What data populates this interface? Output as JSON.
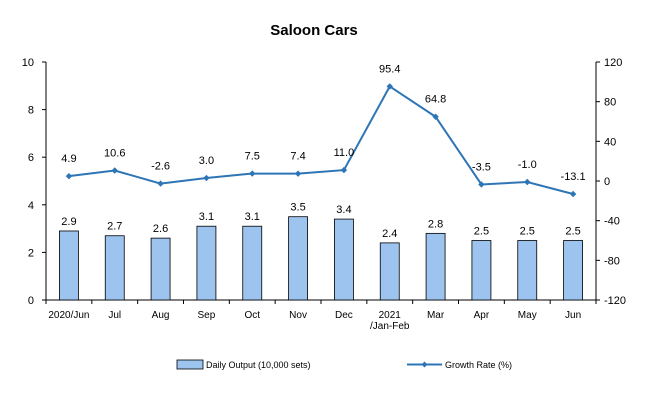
{
  "chart_data": {
    "type": "bar+line",
    "title": "Saloon Cars",
    "categories": [
      "2020/Jun",
      "Jul",
      "Aug",
      "Sep",
      "Oct",
      "Nov",
      "Dec",
      "2021\n/Jan-Feb",
      "Mar",
      "Apr",
      "May",
      "Jun"
    ],
    "series": [
      {
        "name": "Daily Output (10,000 sets)",
        "type": "bar",
        "axis": "left",
        "values": [
          2.9,
          2.7,
          2.6,
          3.1,
          3.1,
          3.5,
          3.4,
          2.4,
          2.8,
          2.5,
          2.5,
          2.5
        ],
        "labels": [
          "2.9",
          "2.7",
          "2.6",
          "3.1",
          "3.1",
          "3.5",
          "3.4",
          "2.4",
          "2.8",
          "2.5",
          "2.5",
          "2.5"
        ]
      },
      {
        "name": "Growth Rate (%)",
        "type": "line",
        "axis": "right",
        "values": [
          4.9,
          10.6,
          -2.6,
          3.0,
          7.5,
          7.4,
          11.0,
          95.4,
          64.8,
          -3.5,
          -1.0,
          -13.1
        ],
        "labels": [
          "4.9",
          "10.6",
          "-2.6",
          "3.0",
          "7.5",
          "7.4",
          "11.0",
          "95.4",
          "64.8",
          "-3.5",
          "-1.0",
          "-13.1"
        ]
      }
    ],
    "y_left": {
      "min": 0,
      "max": 10,
      "ticks": [
        "0",
        "2",
        "4",
        "6",
        "8",
        "10"
      ]
    },
    "y_right": {
      "min": -120,
      "max": 120,
      "ticks": [
        "-120",
        "-80",
        "-40",
        "0",
        "40",
        "80",
        "120"
      ]
    },
    "grid": false,
    "legend_position": "bottom",
    "colors": {
      "bar_fill": "#9dc3ef",
      "bar_stroke": "#000000",
      "line": "#2e75b6",
      "axis": "#000000"
    }
  }
}
